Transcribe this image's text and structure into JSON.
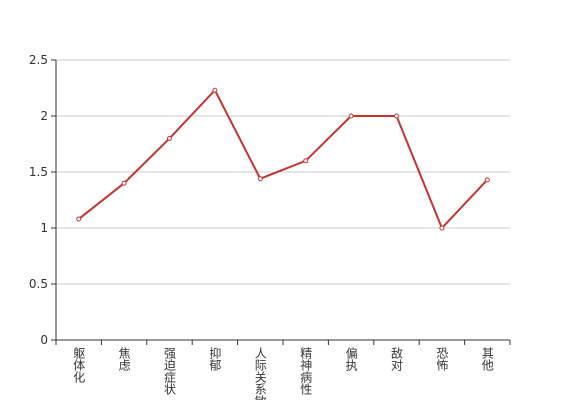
{
  "chart_data": {
    "type": "line",
    "categories": [
      "躯体化",
      "焦虑",
      "强迫症状",
      "抑郁",
      "人际关系敏感",
      "精神病性",
      "偏执",
      "敌对",
      "恐怖",
      "其他"
    ],
    "values": [
      1.08,
      1.4,
      1.8,
      2.23,
      1.44,
      1.6,
      2.0,
      2.0,
      1.0,
      1.43
    ],
    "color": "#c23531",
    "ylim": [
      0,
      2.5
    ],
    "yticks": [
      0,
      0.5,
      1,
      1.5,
      2,
      2.5
    ],
    "grid": true
  }
}
